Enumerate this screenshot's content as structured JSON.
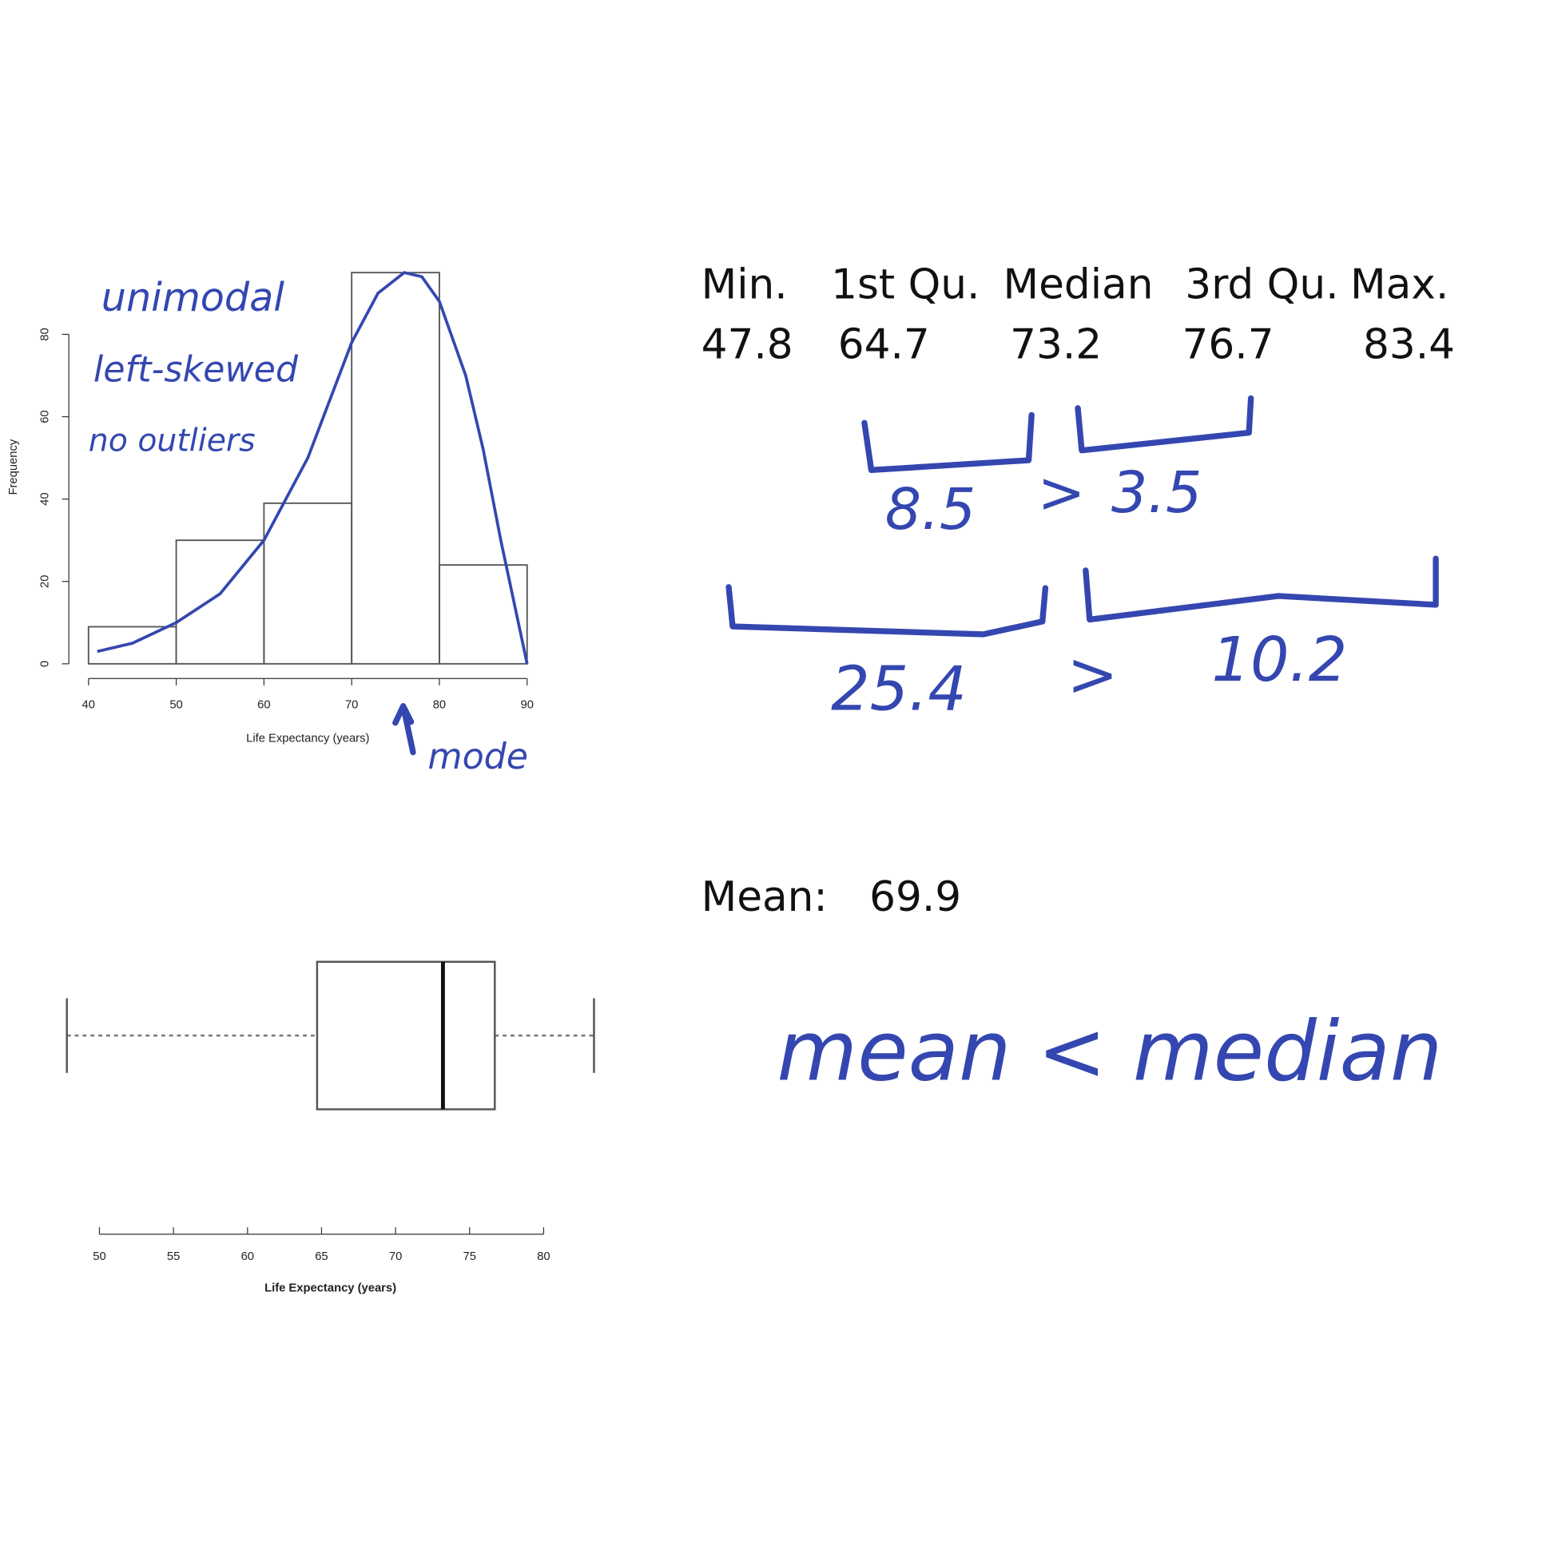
{
  "chart_data": [
    {
      "type": "histogram",
      "xlabel": "Life Expectancy (years)",
      "ylabel": "Frequency",
      "bins": [
        40,
        50,
        60,
        70,
        80,
        90
      ],
      "values": [
        9,
        30,
        39,
        95,
        24
      ],
      "xlim": [
        40,
        90
      ],
      "xticks": [
        40,
        50,
        60,
        70,
        80,
        90
      ],
      "ylim": [
        0,
        96
      ],
      "yticks": [
        0,
        20,
        40,
        60,
        80
      ],
      "curve": {
        "x": [
          41,
          45,
          50,
          55,
          60,
          65,
          70,
          73,
          76,
          78,
          80,
          83,
          85,
          87,
          89,
          90
        ],
        "values": [
          3,
          5,
          10,
          17,
          30,
          50,
          78,
          90,
          95,
          94,
          88,
          70,
          52,
          30,
          10,
          0
        ]
      },
      "color": "#3447b0"
    },
    {
      "type": "boxplot",
      "xlabel": "Life Expectancy (years)",
      "min": 47.8,
      "q1": 64.7,
      "median": 73.2,
      "q3": 76.7,
      "max": 83.4,
      "xlim": [
        47.8,
        83.4
      ],
      "xticks": [
        50,
        55,
        60,
        65,
        70,
        75,
        80
      ]
    }
  ],
  "summary": {
    "headers": [
      "Min.",
      "1st Qu.",
      "Median",
      "3rd Qu.",
      "Max."
    ],
    "values": [
      "47.8",
      "64.7",
      "73.2",
      "76.7",
      "83.4"
    ],
    "mean_label": "Mean:",
    "mean": "69.9"
  },
  "annotations": {
    "shape": [
      "unimodal",
      "left-skewed",
      "no outliers"
    ],
    "mode": "mode",
    "upper_left": "8.5",
    "upper_gt": ">",
    "upper_right": "3.5",
    "whisker_left": "25.4",
    "whisker_gt": ">",
    "whisker_right": "10.2",
    "conclusion": "mean < median"
  }
}
